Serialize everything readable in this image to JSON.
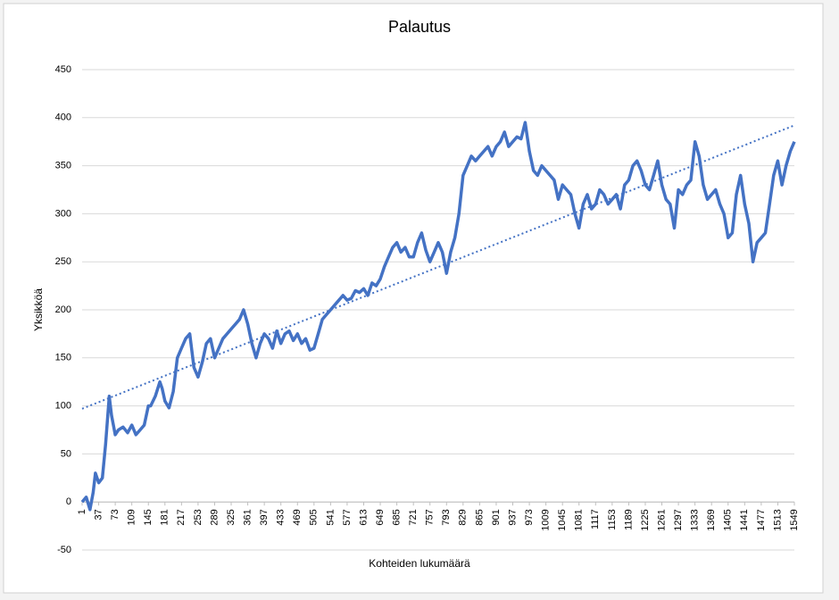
{
  "chart_data": {
    "type": "line",
    "title": "Palautus",
    "x_label": "Kohteiden lukumäärä",
    "y_label": "Yksikköä",
    "x": [
      1,
      10,
      18,
      25,
      30,
      37,
      45,
      52,
      60,
      65,
      73,
      80,
      90,
      100,
      109,
      118,
      127,
      136,
      145,
      150,
      160,
      170,
      175,
      181,
      190,
      199,
      208,
      217,
      226,
      235,
      244,
      253,
      262,
      271,
      280,
      289,
      298,
      307,
      316,
      325,
      334,
      343,
      352,
      361,
      370,
      379,
      388,
      397,
      406,
      415,
      424,
      433,
      442,
      451,
      460,
      469,
      478,
      487,
      496,
      505,
      514,
      523,
      532,
      541,
      550,
      559,
      568,
      577,
      586,
      595,
      604,
      613,
      622,
      631,
      640,
      649,
      658,
      667,
      676,
      685,
      694,
      703,
      712,
      721,
      730,
      739,
      748,
      757,
      766,
      775,
      784,
      793,
      802,
      811,
      820,
      829,
      838,
      847,
      856,
      865,
      874,
      883,
      892,
      901,
      910,
      919,
      928,
      937,
      946,
      955,
      964,
      973,
      982,
      991,
      1000,
      1009,
      1018,
      1027,
      1036,
      1045,
      1054,
      1063,
      1072,
      1081,
      1090,
      1099,
      1108,
      1117,
      1126,
      1135,
      1144,
      1153,
      1162,
      1171,
      1180,
      1189,
      1198,
      1207,
      1216,
      1225,
      1234,
      1243,
      1252,
      1261,
      1270,
      1279,
      1288,
      1297,
      1306,
      1315,
      1324,
      1333,
      1342,
      1351,
      1360,
      1369,
      1378,
      1387,
      1396,
      1405,
      1414,
      1423,
      1432,
      1441,
      1450,
      1459,
      1468,
      1477,
      1486,
      1495,
      1504,
      1513,
      1522,
      1531,
      1540,
      1549
    ],
    "series": [
      {
        "color": "#4472c4",
        "values": [
          0,
          5,
          -8,
          10,
          30,
          20,
          25,
          60,
          110,
          90,
          70,
          75,
          78,
          72,
          80,
          70,
          75,
          80,
          100,
          100,
          110,
          125,
          118,
          105,
          98,
          115,
          150,
          160,
          170,
          175,
          140,
          130,
          145,
          165,
          170,
          150,
          160,
          170,
          175,
          180,
          185,
          190,
          200,
          185,
          165,
          150,
          165,
          175,
          170,
          160,
          178,
          165,
          175,
          178,
          168,
          175,
          165,
          170,
          158,
          160,
          175,
          190,
          195,
          200,
          205,
          210,
          215,
          210,
          212,
          220,
          218,
          222,
          215,
          228,
          225,
          232,
          245,
          255,
          265,
          270,
          260,
          265,
          255,
          255,
          270,
          280,
          262,
          250,
          260,
          270,
          260,
          238,
          260,
          275,
          300,
          340,
          350,
          360,
          355,
          360,
          365,
          370,
          360,
          370,
          375,
          385,
          370,
          375,
          380,
          378,
          395,
          365,
          345,
          340,
          350,
          345,
          340,
          335,
          315,
          330,
          325,
          320,
          300,
          285,
          310,
          320,
          305,
          310,
          325,
          320,
          310,
          315,
          320,
          305,
          330,
          335,
          350,
          355,
          345,
          330,
          325,
          340,
          355,
          330,
          315,
          310,
          285,
          325,
          320,
          330,
          335,
          375,
          360,
          330,
          315,
          320,
          325,
          310,
          300,
          275,
          280,
          320,
          340,
          310,
          290,
          250,
          270,
          275,
          280,
          310,
          340,
          355,
          330,
          350,
          365,
          375
        ]
      }
    ],
    "trendline": {
      "x": [
        1,
        1549
      ],
      "values": [
        97,
        392
      ],
      "color": "#4472c4"
    },
    "xlim": [
      1,
      1549
    ],
    "xticks": [
      1,
      37,
      73,
      109,
      145,
      181,
      217,
      253,
      289,
      325,
      361,
      397,
      433,
      469,
      505,
      541,
      577,
      613,
      649,
      685,
      721,
      757,
      793,
      829,
      865,
      901,
      937,
      973,
      1009,
      1045,
      1081,
      1117,
      1153,
      1189,
      1225,
      1261,
      1297,
      1333,
      1369,
      1405,
      1441,
      1477,
      1513,
      1549
    ],
    "ylim": [
      -50,
      450
    ],
    "yticks": [
      -50,
      0,
      50,
      100,
      150,
      200,
      250,
      300,
      350,
      400,
      450
    ],
    "grid": true
  }
}
